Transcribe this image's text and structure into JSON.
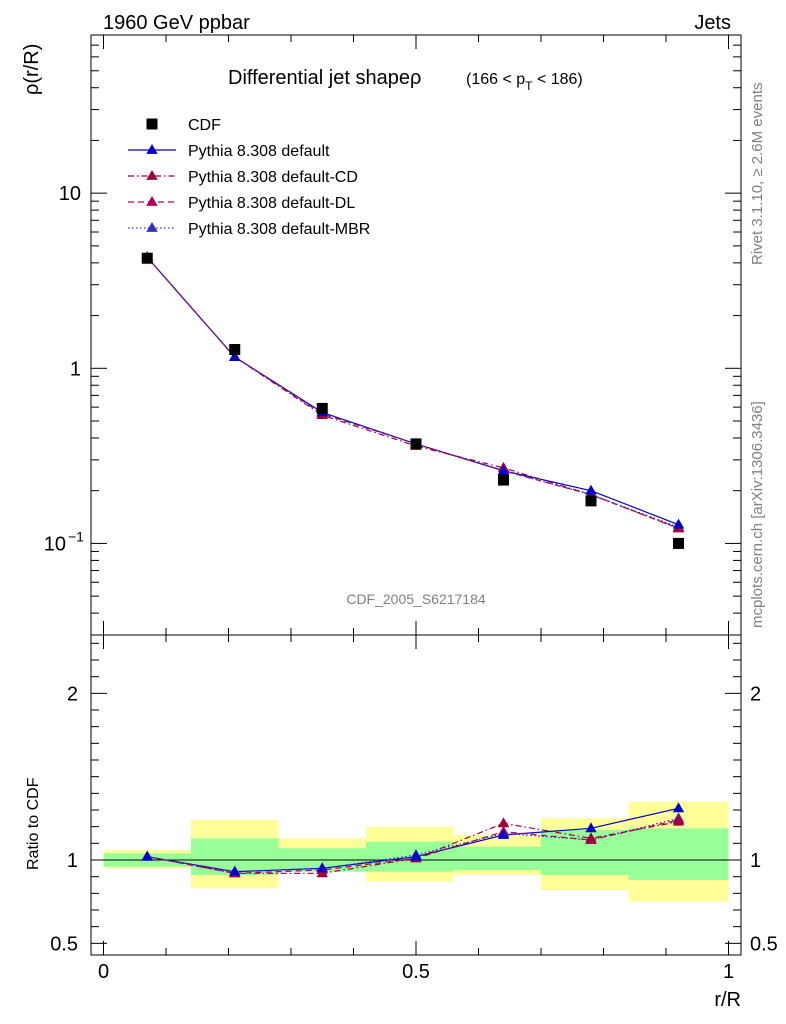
{
  "header": {
    "left": "1960 GeV ppbar",
    "right": "Jets"
  },
  "side_labels": {
    "rivet": "Rivet 3.1.10, ≥ 2.6M events",
    "mcplots": "mcplots.cern.ch [arXiv:1306.3436]"
  },
  "chart_data": {
    "type": "line",
    "title": "Differential jet shape",
    "title_rho": "ρ",
    "title_range_pre": "(166 < p",
    "title_range_sub": "T",
    "title_range_post": " < 186)",
    "analysis_id": "CDF_2005_S6217184",
    "x": [
      0.07,
      0.21,
      0.35,
      0.5,
      0.64,
      0.78,
      0.92
    ],
    "x_bins": [
      0,
      0.14,
      0.28,
      0.42,
      0.56,
      0.7,
      0.84,
      1.0
    ],
    "xlabel": "r/R",
    "xlim": [
      -0.02,
      1.02
    ],
    "xticks": [
      {
        "v": 0,
        "label": "0"
      },
      {
        "v": 0.5,
        "label": "0.5"
      },
      {
        "v": 1,
        "label": "1"
      }
    ],
    "main_panel": {
      "ylabel": "ρ(r/R)",
      "yscale": "log",
      "ylim": [
        0.03,
        80
      ],
      "yticks": [
        {
          "v": 10,
          "label": "10",
          "sup": ""
        },
        {
          "v": 1,
          "label": "1",
          "sup": ""
        },
        {
          "v": 0.1,
          "label": "10",
          "sup": "−1"
        }
      ],
      "data": {
        "name": "CDF",
        "values": [
          4.25,
          1.28,
          0.59,
          0.37,
          0.23,
          0.175,
          0.1
        ]
      },
      "series": [
        {
          "name": "Pythia 8.308 default",
          "color": "#0000cc",
          "dash": "",
          "values": [
            4.3,
            1.16,
            0.56,
            0.37,
            0.26,
            0.2,
            0.128
          ]
        },
        {
          "name": "Pythia 8.308 default-CD",
          "color": "#a0003a",
          "dash": "6,3,1.5,3",
          "values": [
            4.3,
            1.16,
            0.54,
            0.36,
            0.27,
            0.19,
            0.122
          ]
        },
        {
          "name": "Pythia 8.308 default-DL",
          "color": "#b0005a",
          "dash": "6,4",
          "values": [
            4.3,
            1.16,
            0.55,
            0.37,
            0.26,
            0.19,
            0.122
          ]
        },
        {
          "name": "Pythia 8.308 default-MBR",
          "color": "#3030c0",
          "dash": "1.5,2.5",
          "values": [
            4.3,
            1.16,
            0.56,
            0.37,
            0.26,
            0.19,
            0.124
          ]
        }
      ]
    },
    "ratio_panel": {
      "ylabel": "Ratio to CDF",
      "ylim": [
        0.43,
        2.35
      ],
      "yticks": [
        {
          "v": 2,
          "label": "2"
        },
        {
          "v": 1,
          "label": "1"
        },
        {
          "v": 0.5,
          "label": "0.5"
        }
      ],
      "band_inner": [
        [
          0.96,
          1.04
        ],
        [
          0.91,
          1.13
        ],
        [
          0.93,
          1.07
        ],
        [
          0.93,
          1.11
        ],
        [
          0.94,
          1.08
        ],
        [
          0.91,
          1.18
        ],
        [
          0.88,
          1.19
        ]
      ],
      "band_outer": [
        [
          0.95,
          1.06
        ],
        [
          0.83,
          1.24
        ],
        [
          0.93,
          1.13
        ],
        [
          0.87,
          1.2
        ],
        [
          0.91,
          1.15
        ],
        [
          0.82,
          1.25
        ],
        [
          0.75,
          1.35
        ]
      ],
      "series": [
        {
          "name": "Pythia 8.308 default",
          "values": [
            1.02,
            0.93,
            0.95,
            1.02,
            1.15,
            1.19,
            1.31
          ]
        },
        {
          "name": "Pythia 8.308 default-CD",
          "values": [
            1.02,
            0.92,
            0.92,
            1.01,
            1.22,
            1.13,
            1.23
          ]
        },
        {
          "name": "Pythia 8.308 default-DL",
          "values": [
            1.02,
            0.92,
            0.94,
            1.01,
            1.17,
            1.12,
            1.24
          ]
        },
        {
          "name": "Pythia 8.308 default-MBR",
          "values": [
            1.02,
            0.93,
            0.95,
            1.03,
            1.16,
            1.12,
            1.25
          ]
        }
      ]
    },
    "legend_placement": "top-left",
    "grid": false
  },
  "colors": {
    "band_inner": "#99ff99",
    "band_outer": "#ffff99",
    "data": "#000000"
  }
}
